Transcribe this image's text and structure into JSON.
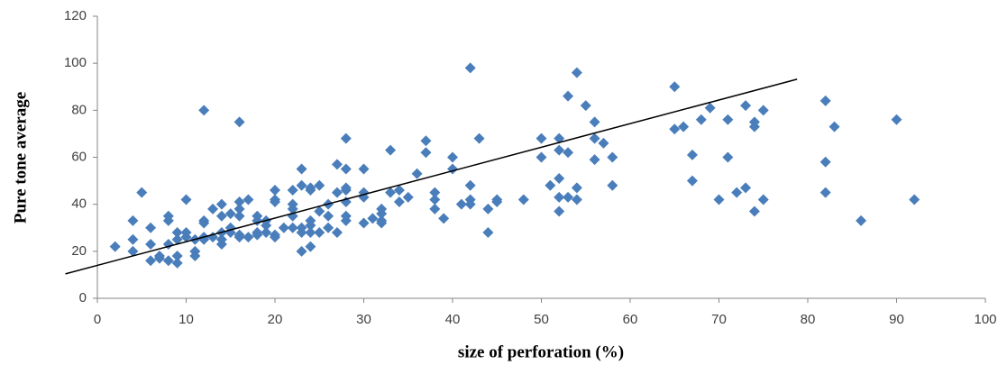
{
  "chart_data": {
    "type": "scatter",
    "xlabel": "size of perforation (%)",
    "ylabel": "Pure tone average",
    "color": "#4a7ebb",
    "xlim": [
      0,
      100
    ],
    "xticks": [
      0,
      10,
      20,
      30,
      40,
      50,
      60,
      70,
      80,
      90,
      100
    ],
    "ylim": [
      0,
      120
    ],
    "yticks": [
      0,
      20,
      40,
      60,
      80,
      100,
      120
    ],
    "grid": false,
    "x": [
      2,
      4,
      4,
      4,
      5,
      6,
      6,
      6,
      7,
      7,
      8,
      8,
      8,
      8,
      9,
      9,
      9,
      9,
      10,
      10,
      10,
      11,
      11,
      11,
      12,
      12,
      12,
      12,
      12,
      13,
      13,
      14,
      14,
      14,
      14,
      14,
      15,
      15,
      15,
      16,
      16,
      16,
      16,
      16,
      16,
      17,
      17,
      18,
      18,
      18,
      18,
      19,
      19,
      19,
      20,
      20,
      20,
      20,
      20,
      21,
      22,
      22,
      22,
      22,
      22,
      23,
      23,
      23,
      23,
      23,
      24,
      24,
      24,
      24,
      24,
      24,
      25,
      25,
      25,
      26,
      26,
      26,
      27,
      27,
      27,
      28,
      28,
      28,
      28,
      28,
      28,
      28,
      30,
      30,
      30,
      30,
      31,
      32,
      32,
      32,
      32,
      33,
      33,
      34,
      34,
      35,
      36,
      37,
      37,
      38,
      38,
      38,
      39,
      40,
      40,
      41,
      42,
      42,
      42,
      42,
      43,
      44,
      44,
      45,
      45,
      48,
      50,
      50,
      51,
      52,
      52,
      52,
      52,
      52,
      53,
      53,
      53,
      54,
      54,
      54,
      55,
      56,
      56,
      56,
      57,
      58,
      58,
      65,
      65,
      66,
      67,
      67,
      68,
      69,
      70,
      71,
      71,
      72,
      73,
      73,
      74,
      74,
      74,
      75,
      75,
      82,
      82,
      82,
      83,
      86,
      90,
      92
    ],
    "values": [
      22,
      33,
      25,
      20,
      45,
      30,
      23,
      16,
      17,
      18,
      35,
      33,
      23,
      16,
      28,
      25,
      18,
      15,
      42,
      28,
      26,
      25,
      20,
      18,
      80,
      33,
      32,
      26,
      25,
      38,
      26,
      40,
      35,
      28,
      25,
      23,
      36,
      30,
      28,
      75,
      41,
      38,
      35,
      27,
      26,
      42,
      26,
      35,
      33,
      28,
      27,
      33,
      31,
      28,
      46,
      42,
      41,
      27,
      26,
      30,
      46,
      40,
      38,
      35,
      30,
      55,
      48,
      30,
      28,
      20,
      47,
      46,
      33,
      31,
      28,
      22,
      48,
      37,
      28,
      40,
      35,
      30,
      57,
      45,
      28,
      68,
      55,
      47,
      46,
      41,
      35,
      33,
      55,
      45,
      43,
      32,
      34,
      38,
      36,
      33,
      32,
      63,
      45,
      46,
      41,
      43,
      53,
      67,
      62,
      45,
      42,
      38,
      34,
      60,
      55,
      40,
      98,
      48,
      42,
      40,
      68,
      38,
      28,
      42,
      41,
      42,
      68,
      60,
      48,
      68,
      63,
      51,
      43,
      37,
      86,
      62,
      43,
      96,
      47,
      42,
      82,
      75,
      68,
      59,
      66,
      60,
      48,
      90,
      72,
      73,
      61,
      50,
      76,
      81,
      42,
      76,
      60,
      45,
      82,
      47,
      75,
      73,
      37,
      80,
      42,
      84,
      58,
      45,
      73,
      33,
      76,
      42
    ],
    "trendline": {
      "color": "#000000",
      "x": [
        -3.6,
        78.8
      ],
      "values": [
        10.4,
        93.2
      ]
    }
  }
}
